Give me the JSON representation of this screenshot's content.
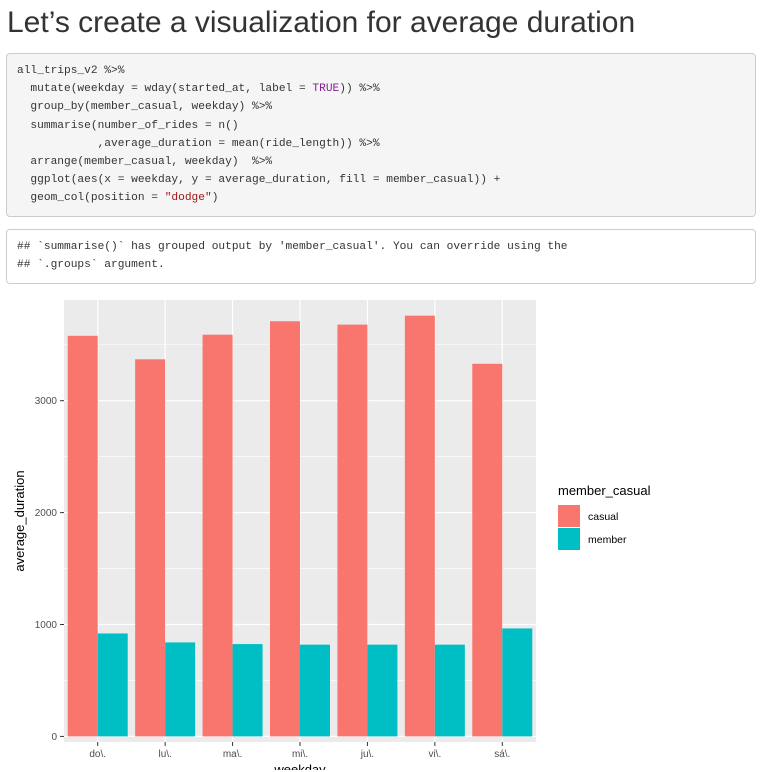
{
  "heading": "Let’s create a visualization for average duration",
  "code": {
    "line1": "all_trips_v2 %>%",
    "line2_pre": "  mutate(weekday = wday(started_at, label = ",
    "line2_kw": "TRUE",
    "line2_post": ")) %>%",
    "line3": "  group_by(member_casual, weekday) %>%",
    "line4": "  summarise(number_of_rides = n()",
    "line5": "            ,average_duration = mean(ride_length)) %>%",
    "line6": "  arrange(member_casual, weekday)  %>%",
    "line7": "  ggplot(aes(x = weekday, y = average_duration, fill = member_casual)) +",
    "line8_pre": "  geom_col(position = ",
    "line8_str": "\"dodge\"",
    "line8_post": ")"
  },
  "output": {
    "line1": "## `summarise()` has grouped output by 'member_casual'. You can override using the",
    "line2": "## `.groups` argument."
  },
  "chart_data": {
    "type": "bar",
    "categories": [
      "do\\.",
      "lu\\.",
      "ma\\.",
      "mi\\.",
      "ju\\.",
      "vi\\.",
      "sá\\."
    ],
    "series": [
      {
        "name": "casual",
        "color": "#F8766D",
        "values": [
          3580,
          3370,
          3590,
          3710,
          3680,
          3760,
          3330
        ]
      },
      {
        "name": "member",
        "color": "#00BFC4",
        "values": [
          920,
          840,
          825,
          820,
          820,
          820,
          965
        ]
      }
    ],
    "xlabel": "weekday",
    "ylabel": "average_duration",
    "ylim": [
      -50,
      3900
    ],
    "yticks": [
      0,
      1000,
      2000,
      3000
    ],
    "ytick_labels": [
      "0",
      "1000",
      "2000",
      "3000"
    ],
    "legend": {
      "title": "member_casual",
      "position": "right"
    },
    "panel_background": "#EBEBEB",
    "grid": true
  }
}
